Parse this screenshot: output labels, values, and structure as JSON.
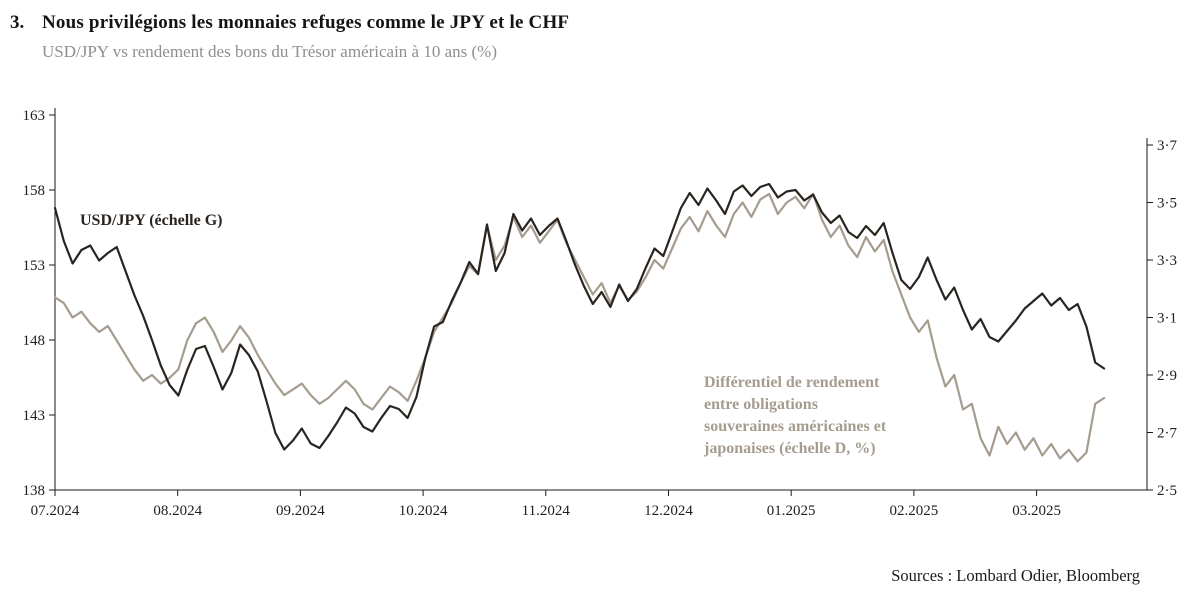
{
  "header": {
    "index": "3.",
    "title": "Nous privilégions les monnaies refuges comme le JPY et le CHF",
    "subtitle": "USD/JPY vs rendement des bons du Trésor américain à 10 ans (%)"
  },
  "footer": {
    "sources": "Sources : Lombard Odier, Bloomberg"
  },
  "chart_data": {
    "type": "line",
    "title": "USD/JPY vs rendement des bons du Trésor américain à 10 ans (%)",
    "grid": false,
    "x_axis": {
      "tick_labels": [
        "07.2024",
        "08.2024",
        "09.2024",
        "10.2024",
        "11.2024",
        "12.2024",
        "01.2025",
        "02.2025",
        "03.2025"
      ],
      "months_span": 8.9,
      "data_span": 8.55
    },
    "left_axis": {
      "min": 138,
      "max": 163,
      "ticks": [
        163,
        158,
        153,
        148,
        143,
        138
      ],
      "tick_labels": [
        "163",
        "158",
        "153",
        "148",
        "143",
        "138"
      ]
    },
    "right_axis": {
      "min": 2.5,
      "max": 3.7,
      "ticks": [
        3.7,
        3.5,
        3.3,
        3.1,
        2.9,
        2.7,
        2.5
      ],
      "tick_labels": [
        "3·7",
        "3·5",
        "3·3",
        "3·1",
        "2·9",
        "2·7",
        "2·5"
      ]
    },
    "series": [
      {
        "id": "yield-differential",
        "name": "Différentiel de rendement entre obligations souveraines américaines et japonaises (échelle D, %)",
        "axis": "right",
        "color": "#a59c8f",
        "values": [
          3.17,
          3.15,
          3.1,
          3.12,
          3.08,
          3.05,
          3.07,
          3.02,
          2.97,
          2.92,
          2.88,
          2.9,
          2.87,
          2.89,
          2.92,
          3.02,
          3.08,
          3.1,
          3.05,
          2.98,
          3.02,
          3.07,
          3.03,
          2.97,
          2.92,
          2.87,
          2.83,
          2.85,
          2.87,
          2.83,
          2.8,
          2.82,
          2.85,
          2.88,
          2.85,
          2.8,
          2.78,
          2.82,
          2.86,
          2.84,
          2.81,
          2.88,
          2.96,
          3.05,
          3.1,
          3.15,
          3.22,
          3.28,
          3.25,
          3.42,
          3.3,
          3.35,
          3.45,
          3.38,
          3.42,
          3.36,
          3.4,
          3.44,
          3.36,
          3.3,
          3.24,
          3.18,
          3.22,
          3.15,
          3.21,
          3.16,
          3.19,
          3.24,
          3.3,
          3.27,
          3.34,
          3.41,
          3.45,
          3.4,
          3.47,
          3.42,
          3.38,
          3.46,
          3.5,
          3.45,
          3.51,
          3.53,
          3.46,
          3.5,
          3.52,
          3.48,
          3.53,
          3.44,
          3.38,
          3.42,
          3.35,
          3.31,
          3.38,
          3.33,
          3.37,
          3.26,
          3.18,
          3.1,
          3.05,
          3.09,
          2.96,
          2.86,
          2.9,
          2.78,
          2.8,
          2.68,
          2.62,
          2.72,
          2.66,
          2.7,
          2.64,
          2.68,
          2.62,
          2.66,
          2.61,
          2.64,
          2.6,
          2.63,
          2.8,
          2.82
        ]
      },
      {
        "id": "usdjpy",
        "name": "USD/JPY (échelle G)",
        "axis": "left",
        "color": "#29241f",
        "values": [
          156.8,
          154.6,
          153.1,
          154.0,
          154.3,
          153.3,
          153.8,
          154.2,
          152.6,
          151.0,
          149.6,
          148.0,
          146.3,
          145.0,
          144.3,
          146.0,
          147.4,
          147.6,
          146.2,
          144.7,
          145.8,
          147.7,
          147.0,
          145.9,
          143.9,
          141.8,
          140.7,
          141.3,
          142.1,
          141.1,
          140.8,
          141.6,
          142.5,
          143.5,
          143.1,
          142.2,
          141.9,
          142.8,
          143.6,
          143.4,
          142.8,
          144.2,
          146.8,
          148.9,
          149.2,
          150.6,
          151.8,
          153.2,
          152.4,
          155.7,
          152.6,
          153.8,
          156.4,
          155.3,
          156.1,
          155.0,
          155.6,
          156.1,
          154.6,
          153.0,
          151.6,
          150.4,
          151.2,
          150.2,
          151.7,
          150.6,
          151.4,
          152.8,
          154.1,
          153.6,
          155.2,
          156.8,
          157.8,
          157.0,
          158.1,
          157.3,
          156.4,
          157.9,
          158.3,
          157.6,
          158.2,
          158.4,
          157.5,
          157.9,
          158.0,
          157.3,
          157.7,
          156.5,
          155.8,
          156.3,
          155.2,
          154.8,
          155.6,
          155.0,
          155.8,
          153.8,
          152.0,
          151.4,
          152.2,
          153.5,
          152.0,
          150.7,
          151.5,
          150.0,
          148.7,
          149.4,
          148.2,
          147.9,
          148.6,
          149.3,
          150.1,
          150.6,
          151.1,
          150.3,
          150.8,
          150.0,
          150.4,
          148.9,
          146.5,
          146.1
        ]
      }
    ],
    "annotations": {
      "left_series_label": "USD/JPY (échelle G)",
      "right_series_label": "Différentiel de rendement\nentre obligations\nsouveraines américaines et\njaponaises (échelle D, %)"
    }
  }
}
